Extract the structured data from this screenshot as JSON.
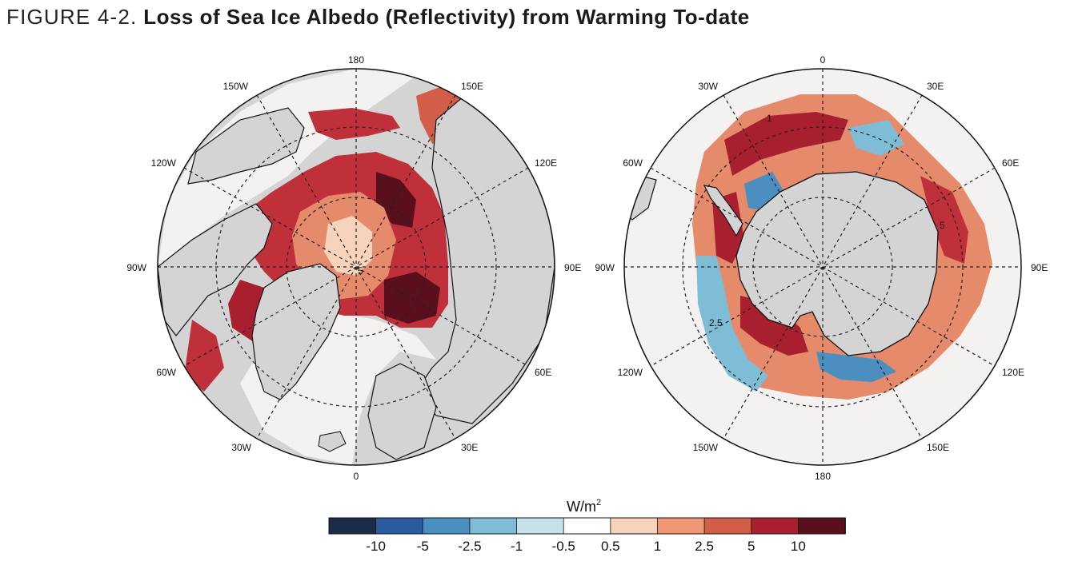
{
  "title": {
    "prefix": "FIGURE 4-2.",
    "main": "Loss of Sea Ice Albedo (Reflectivity) from Warming To-date"
  },
  "colors": {
    "land": "#d4d4d4",
    "ocean": "#f4f2f0",
    "grid": "#222222"
  },
  "arctic_map": {
    "name": "Arctic",
    "labels": {
      "top": "180",
      "bottom": "0",
      "left": "90W",
      "right": "90E",
      "ul_outer": "150W",
      "ul_inner": "120W",
      "ur_outer": "150E",
      "ur_inner": "120E",
      "ll_inner": "60W",
      "ll_outer": "30W",
      "lr_inner": "60E",
      "lr_outer": "30E"
    },
    "contours": [
      "5"
    ]
  },
  "antarctic_map": {
    "name": "Antarctic",
    "labels": {
      "top": "0",
      "bottom": "180",
      "left": "90W",
      "right": "90E",
      "ul_outer": "30W",
      "ul_inner": "60W",
      "ur_outer": "30E",
      "ur_inner": "60E",
      "ll_inner": "120W",
      "ll_outer": "150W",
      "lr_inner": "120E",
      "lr_outer": "150E"
    },
    "contours": [
      "1",
      "2.5",
      "5"
    ]
  },
  "colorbar": {
    "unit": "W/m",
    "unit_sup": "2",
    "colors": [
      "#1c2b4a",
      "#2c5a9e",
      "#4a8fc0",
      "#7fbcd6",
      "#c6e2e9",
      "#ffffff",
      "#f7d3bc",
      "#ef9672",
      "#d25e4a",
      "#a8202f",
      "#5a0f1c"
    ],
    "ticks": [
      "-10",
      "-5",
      "-2.5",
      "-1",
      "-0.5",
      "0.5",
      "1",
      "2.5",
      "5",
      "10"
    ]
  }
}
